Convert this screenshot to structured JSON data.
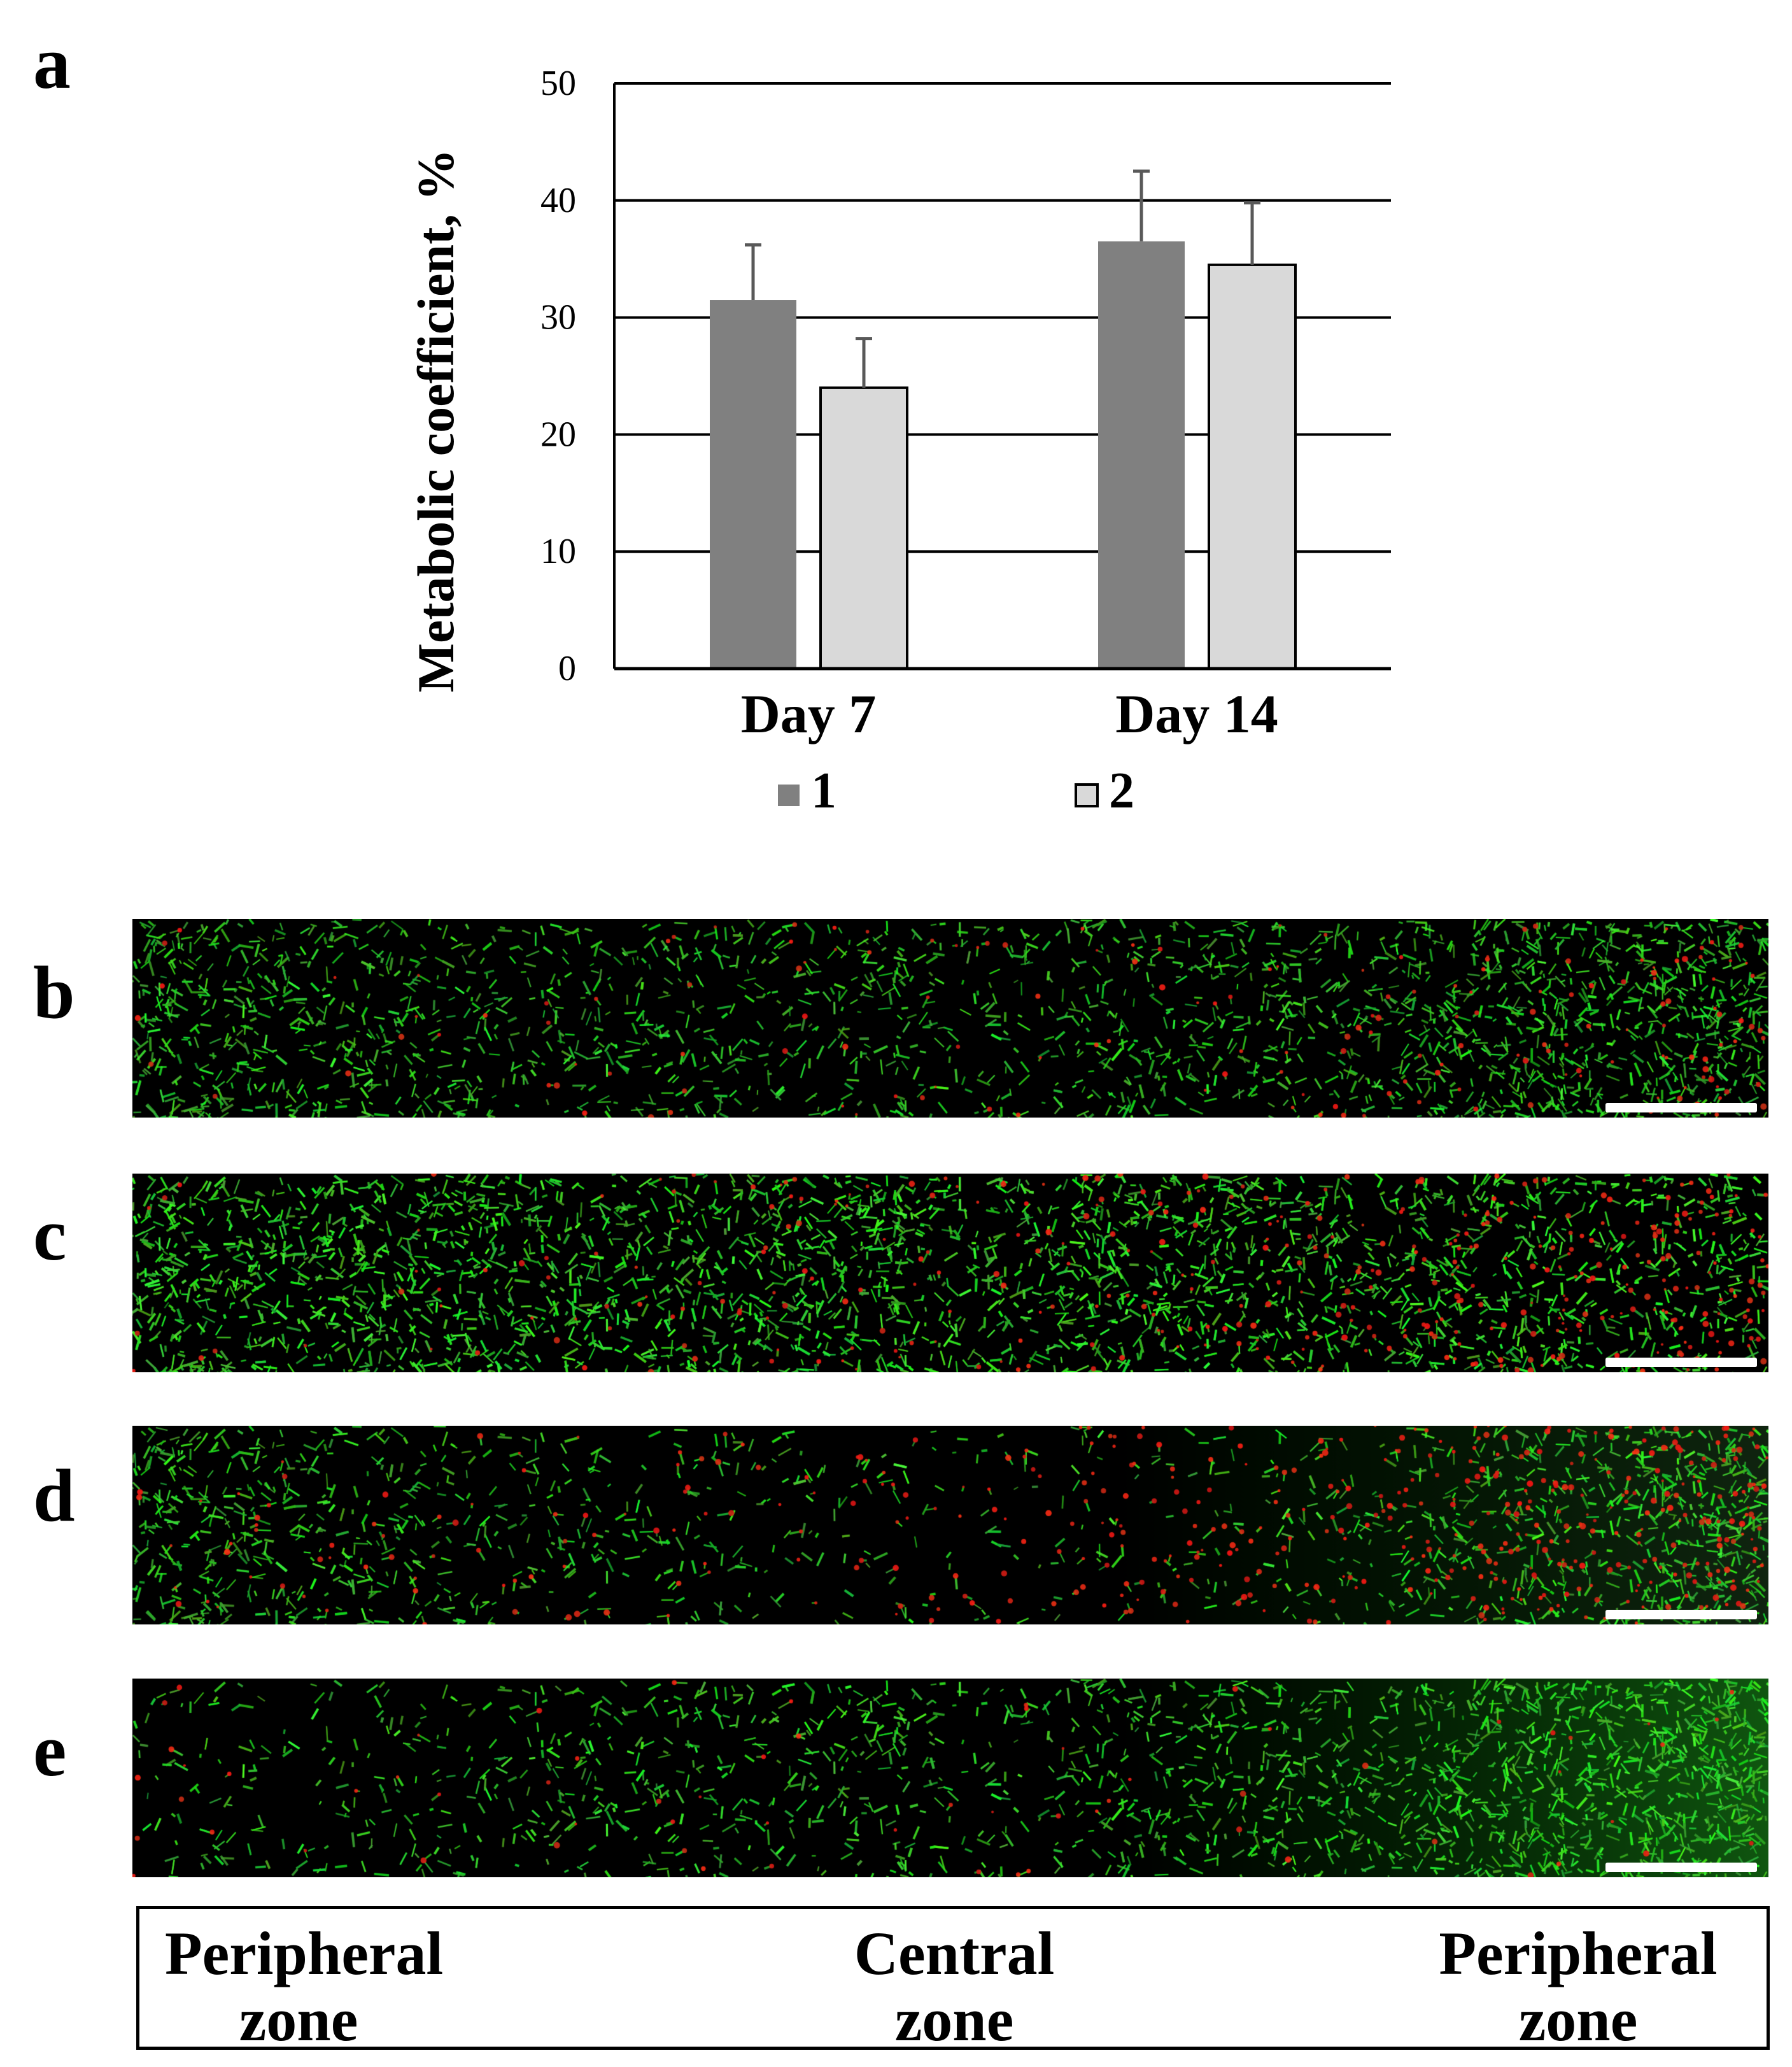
{
  "panels": {
    "a": "a",
    "b": "b",
    "c": "c",
    "d": "d",
    "e": "e"
  },
  "chart_data": {
    "type": "bar",
    "title": "",
    "xlabel": "",
    "ylabel": "Metabolic coefficient, %",
    "ylim": [
      0,
      50
    ],
    "yticks": [
      0,
      10,
      20,
      30,
      40,
      50
    ],
    "grid": true,
    "categories": [
      "Day 7",
      "Day 14"
    ],
    "series": [
      {
        "name": "1",
        "color": "#808080",
        "values": [
          31.5,
          36.5
        ],
        "errors": [
          4.7,
          6.0
        ]
      },
      {
        "name": "2",
        "color": "#d9d9d9",
        "values": [
          24.0,
          34.5
        ],
        "errors": [
          4.2,
          5.3
        ]
      }
    ],
    "legend_position": "bottom"
  },
  "micrographs": [
    {
      "panel": "b",
      "stain": "green live / red dead cells",
      "green_density": "sparse, denser at right edge",
      "red_density": "low"
    },
    {
      "panel": "c",
      "stain": "green live / red dead cells",
      "green_density": "dense throughout",
      "red_density": "high on right"
    },
    {
      "panel": "d",
      "stain": "green live / red dead cells",
      "green_density": "at both edges, dark center",
      "red_density": "high on right"
    },
    {
      "panel": "e",
      "stain": "green live / red dead cells",
      "green_density": "very dense on right",
      "red_density": "low"
    }
  ],
  "zones": {
    "left": {
      "line1": "Peripheral",
      "line2": "zone"
    },
    "center": {
      "line1": "Central",
      "line2": "zone"
    },
    "right": {
      "line1": "Peripheral",
      "line2": "zone"
    }
  }
}
